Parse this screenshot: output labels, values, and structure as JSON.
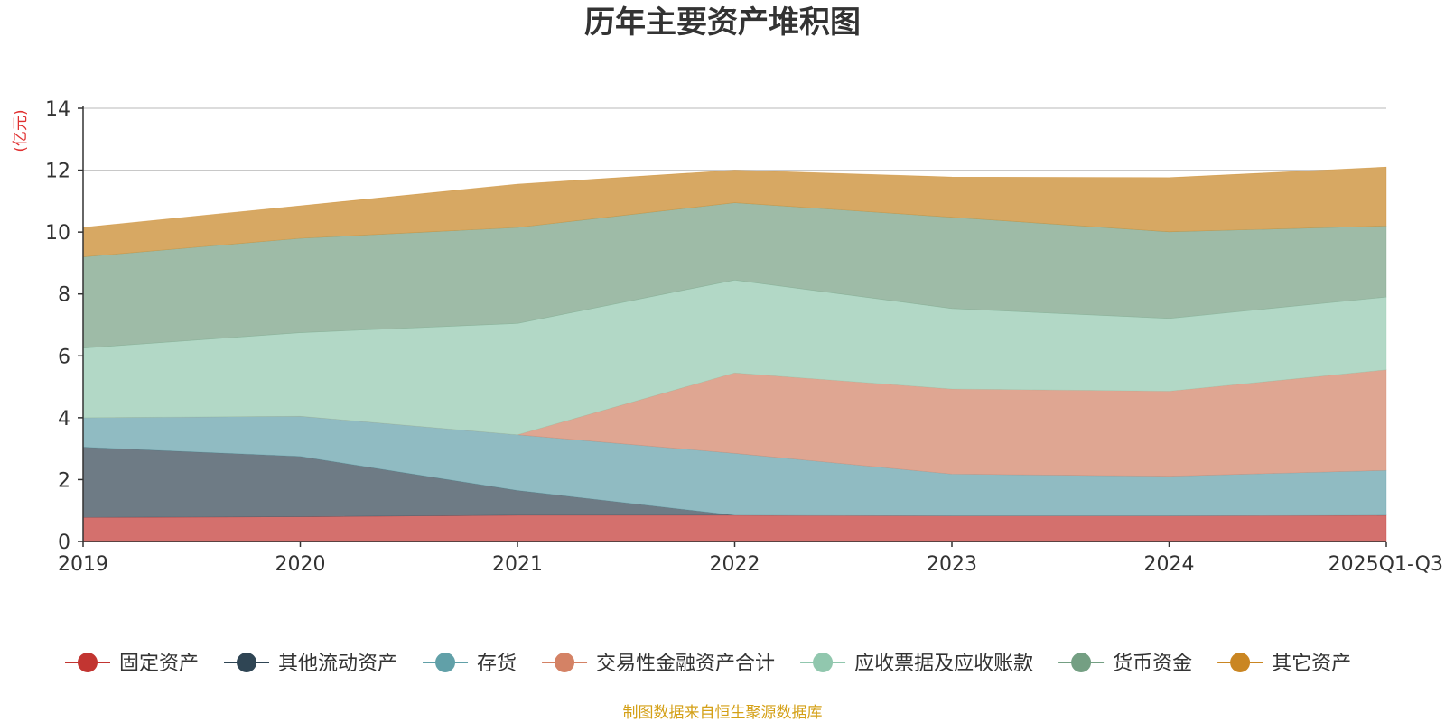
{
  "chart_data": {
    "type": "area",
    "stacked": true,
    "title": "历年主要资产堆积图",
    "ylabel": "(亿元)",
    "xlabel": "",
    "categories": [
      "2019",
      "2020",
      "2021",
      "2022",
      "2023",
      "2024",
      "2025Q1-Q3"
    ],
    "ylim": [
      0,
      14
    ],
    "yticks": [
      0,
      2,
      4,
      6,
      8,
      10,
      12,
      14
    ],
    "grid": true,
    "legend_position": "bottom",
    "series": [
      {
        "name": "固定资产",
        "color": "#c23531",
        "fill": "#d4706d",
        "values": [
          0.78,
          0.8,
          0.85,
          0.85,
          0.83,
          0.83,
          0.85
        ]
      },
      {
        "name": "其他流动资产",
        "color": "#2f4554",
        "fill": "#6e7b85",
        "values": [
          2.27,
          1.95,
          0.8,
          0.0,
          0.0,
          0.0,
          0.0
        ]
      },
      {
        "name": "存货",
        "color": "#61a0a8",
        "fill": "#90bbc2",
        "values": [
          0.95,
          1.3,
          1.8,
          2.0,
          1.35,
          1.28,
          1.45
        ]
      },
      {
        "name": "交易性金融资产合计",
        "color": "#d48265",
        "fill": "#dfa692",
        "values": [
          0.0,
          0.0,
          0.0,
          2.6,
          2.75,
          2.75,
          3.25
        ]
      },
      {
        "name": "应收票据及应收账款",
        "color": "#91c7ae",
        "fill": "#b2d8c6",
        "values": [
          2.25,
          2.7,
          3.6,
          3.0,
          2.6,
          2.35,
          2.35
        ]
      },
      {
        "name": "货币资金",
        "color": "#749f83",
        "fill": "#9ebba7",
        "values": [
          2.95,
          3.05,
          3.1,
          2.5,
          2.95,
          2.8,
          2.3
        ]
      },
      {
        "name": "其它资产",
        "color": "#ca8622",
        "fill": "#d7a863",
        "values": [
          0.95,
          1.05,
          1.4,
          1.05,
          1.3,
          1.75,
          1.9
        ]
      }
    ]
  },
  "footer": {
    "source_text": "制图数据来自恒生聚源数据库",
    "source_color": "#d4a017",
    "unit_color": "#e03030"
  }
}
